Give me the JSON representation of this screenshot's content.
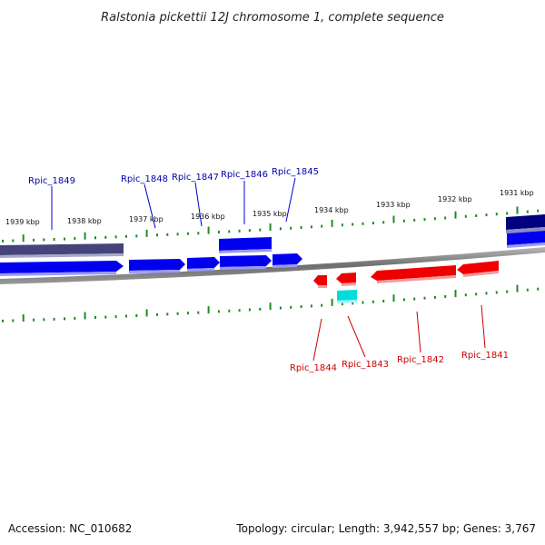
{
  "title": "Ralstonia pickettii 12J chromosome 1, complete sequence",
  "footer": {
    "accession": "Accession: NC_010682",
    "summary": "Topology: circular; Length: 3,942,557 bp; Genes: 3,767"
  },
  "colors": {
    "forward_gene": "#0000ee",
    "forward_gene_dark": "#000080",
    "forward_gene_muted": "#44447a",
    "reverse_gene": "#ee0000",
    "rna_gene": "#00dddd",
    "tick": "#228b22",
    "forward_label": "#0000aa",
    "reverse_label": "#cc0000",
    "backbone": "#7a7a7a"
  },
  "scale": {
    "unit": "kbp",
    "labels": [
      "1939 kbp",
      "1938 kbp",
      "1937 kbp",
      "1936 kbp",
      "1935 kbp",
      "1934 kbp",
      "1933 kbp",
      "1932 kbp",
      "1931 kbp"
    ]
  },
  "genes": {
    "forward": [
      {
        "name": "Rpic_1849"
      },
      {
        "name": "Rpic_1848"
      },
      {
        "name": "Rpic_1847"
      },
      {
        "name": "Rpic_1846"
      },
      {
        "name": "Rpic_1845"
      }
    ],
    "reverse": [
      {
        "name": "Rpic_1844"
      },
      {
        "name": "Rpic_1843"
      },
      {
        "name": "Rpic_1842"
      },
      {
        "name": "Rpic_1841"
      }
    ]
  }
}
